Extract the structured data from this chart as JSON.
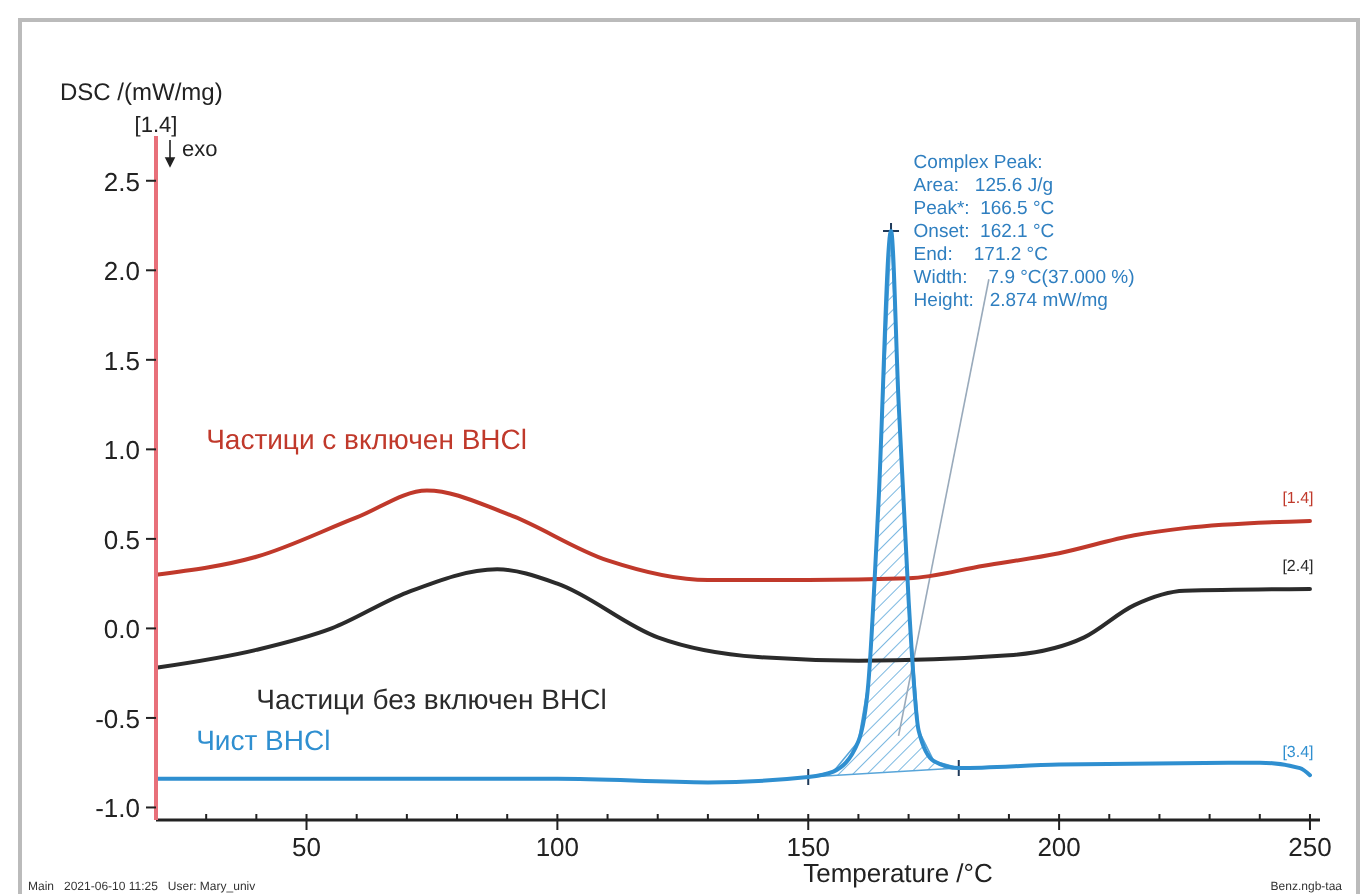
{
  "chart_data": {
    "type": "line",
    "xlabel": "Temperature /°C",
    "ylabel": "DSC /(mW/mg)",
    "xlim": [
      20,
      252
    ],
    "ylim": [
      -1.07,
      2.75
    ],
    "xticks": [
      50,
      100,
      150,
      200,
      250
    ],
    "yticks": [
      {
        "value": -1,
        "label": "-1.0"
      },
      {
        "value": -0.5,
        "label": "-0.5"
      },
      {
        "value": 0,
        "label": "0.0"
      },
      {
        "value": 0.5,
        "label": "0.5"
      },
      {
        "value": 1,
        "label": "1.0"
      },
      {
        "value": 1.5,
        "label": "1.5"
      },
      {
        "value": 2,
        "label": "2.0"
      },
      {
        "value": 2.5,
        "label": "2.5"
      }
    ],
    "grid": false,
    "legend": false,
    "marker": "none",
    "line_style": "solid",
    "series": [
      {
        "name": "Частици с включен BHCl",
        "color": "#c0392b",
        "x": [
          20,
          40,
          60,
          74,
          90,
          110,
          130,
          150,
          170,
          185,
          200,
          215,
          225,
          250
        ],
        "values": [
          0.3,
          0.4,
          0.62,
          0.77,
          0.64,
          0.38,
          0.27,
          0.27,
          0.28,
          0.35,
          0.42,
          0.52,
          0.56,
          0.6
        ]
      },
      {
        "name": "Частици без включен BHCl",
        "color": "#2b2b2b",
        "x": [
          20,
          40,
          55,
          70,
          88,
          100,
          120,
          140,
          160,
          190,
          205,
          215,
          225,
          250
        ],
        "values": [
          -0.22,
          -0.12,
          0,
          0.2,
          0.33,
          0.25,
          -0.05,
          -0.16,
          -0.18,
          -0.15,
          -0.05,
          0.13,
          0.21,
          0.22
        ]
      },
      {
        "name": "Чист BHCl",
        "color": "#2f8fd0",
        "x": [
          20,
          100,
          130,
          150,
          155,
          160,
          162,
          164,
          166.5,
          168,
          170,
          172,
          175,
          180,
          200,
          240,
          248,
          250
        ],
        "values": [
          -0.84,
          -0.84,
          -0.86,
          -0.83,
          -0.8,
          -0.63,
          -0.3,
          0.7,
          2.22,
          1.27,
          0.16,
          -0.57,
          -0.74,
          -0.78,
          -0.76,
          -0.75,
          -0.78,
          -0.82
        ]
      }
    ],
    "annotations": [
      "Complex Peak:",
      "Area:   125.6 J/g",
      "Peak*:  166.5 °C",
      "Onset:  162.1 °C",
      "End:    171.2 °C",
      "Width:    7.9 °C(37.000 %)",
      "Height:   2.874 mW/mg",
      "exo",
      "[1.4]",
      "[1.4]",
      "[2.4]",
      "[3.4]",
      "Main   2021-06-10 11:25   User: Mary_univ",
      "Benz.ngb-taa"
    ]
  }
}
